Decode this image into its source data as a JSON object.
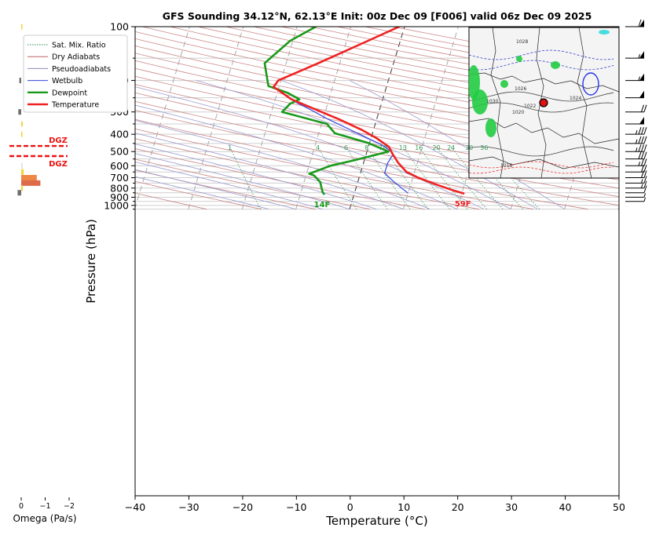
{
  "chart_data": {
    "type": "line",
    "subtype": "skew-t sounding",
    "title": "GFS Sounding 34.12°N, 62.13°E Init: 00z Dec 09 [F006] valid 06z Dec 09 2025",
    "xlabel": "Temperature (°C)",
    "ylabel": "Pressure (hPa)",
    "xlim": [
      -40,
      50
    ],
    "ylim": [
      1050,
      100
    ],
    "y_scale": "log",
    "x_ticks": [
      "−40",
      "−30",
      "−20",
      "−10",
      "0",
      "10",
      "20",
      "30",
      "40",
      "50"
    ],
    "y_ticks": [
      "100",
      "200",
      "300",
      "400",
      "500",
      "600",
      "700",
      "800",
      "900",
      "1000"
    ],
    "legend": {
      "placement": "top-left",
      "entries": [
        {
          "label": "Sat. Mix. Ratio",
          "color": "#2e8b57",
          "style": "dotted"
        },
        {
          "label": "Dry Adiabats",
          "color": "#c06060",
          "style": "solid-thin"
        },
        {
          "label": "Pseudoadiabats",
          "color": "#8888bb",
          "style": "solid-thin"
        },
        {
          "label": "Wetbulb",
          "color": "#3344dd",
          "style": "solid"
        },
        {
          "label": "Dewpoint",
          "color": "#1a9a1a",
          "style": "solid-thick"
        },
        {
          "label": "Temperature",
          "color": "#ee2222",
          "style": "solid-thick"
        }
      ]
    },
    "mixing_ratio_labels": [
      "1",
      "4",
      "6",
      "8",
      "10",
      "13",
      "16",
      "20",
      "24",
      "30",
      "36"
    ],
    "series": [
      {
        "name": "Temperature",
        "color": "#ee2222",
        "points": [
          [
            20.5,
            860
          ],
          [
            18,
            820
          ],
          [
            14.5,
            760
          ],
          [
            11,
            700
          ],
          [
            8.5,
            650
          ],
          [
            6.5,
            580
          ],
          [
            5,
            520
          ],
          [
            3.8,
            470
          ],
          [
            1,
            420
          ],
          [
            -2,
            380
          ],
          [
            -7,
            330
          ],
          [
            -12,
            290
          ],
          [
            -17,
            255
          ],
          [
            -21,
            217
          ],
          [
            -20.5,
            200
          ],
          [
            -14,
            160
          ],
          [
            -6,
            120
          ],
          [
            -1,
            100
          ]
        ]
      },
      {
        "name": "Dewpoint",
        "color": "#1a9a1a",
        "points": [
          [
            -5.5,
            870
          ],
          [
            -6,
            840
          ],
          [
            -6.5,
            790
          ],
          [
            -7,
            740
          ],
          [
            -8.5,
            680
          ],
          [
            -9.5,
            665
          ],
          [
            -6,
            600
          ],
          [
            -2,
            560
          ],
          [
            4,
            500
          ],
          [
            -0.5,
            445
          ],
          [
            -7,
            395
          ],
          [
            -9,
            350
          ],
          [
            -18,
            300
          ],
          [
            -17,
            270
          ],
          [
            -15.5,
            255
          ],
          [
            -18,
            235
          ],
          [
            -22,
            215
          ],
          [
            -22.5,
            200
          ],
          [
            -24,
            160
          ],
          [
            -20.5,
            120
          ],
          [
            -16.5,
            100
          ]
        ]
      },
      {
        "name": "Wetbulb",
        "color": "#3344dd",
        "points": [
          [
            10,
            855
          ],
          [
            8.5,
            800
          ],
          [
            6.5,
            730
          ],
          [
            4.5,
            660
          ],
          [
            4.5,
            580
          ],
          [
            5,
            520
          ],
          [
            4.5,
            500
          ],
          [
            2.5,
            460
          ],
          [
            -1.5,
            410
          ],
          [
            -5,
            370
          ],
          [
            -9,
            330
          ],
          [
            -13,
            290
          ],
          [
            -16,
            265
          ]
        ]
      }
    ],
    "annotations": {
      "surface_dewpoint": "14F",
      "surface_temperature": "59F"
    },
    "dgz": {
      "label": "DGZ",
      "pressures": [
        465,
        530
      ]
    },
    "omega": {
      "xlabel": "Omega (Pa/s)",
      "x_ticks": [
        "0",
        "−1",
        "−2"
      ],
      "bars": [
        {
          "pressure": 100,
          "value": -0.03,
          "color": "#f2d43b"
        },
        {
          "pressure": 200,
          "value": 0.08,
          "color": "#707070"
        },
        {
          "pressure": 300,
          "value": 0.12,
          "color": "#707070"
        },
        {
          "pressure": 350,
          "value": -0.06,
          "color": "#f2d43b"
        },
        {
          "pressure": 400,
          "value": -0.03,
          "color": "#f2d43b"
        },
        {
          "pressure": 600,
          "value": -0.02,
          "color": "#dddddd"
        },
        {
          "pressure": 650,
          "value": -0.1,
          "color": "#f2d43b"
        },
        {
          "pressure": 700,
          "value": -0.65,
          "color": "#ee8844"
        },
        {
          "pressure": 750,
          "value": -0.8,
          "color": "#dd6a4a"
        },
        {
          "pressure": 800,
          "value": -0.07,
          "color": "#f2d43b"
        },
        {
          "pressure": 850,
          "value": 0.15,
          "color": "#707070"
        }
      ]
    },
    "wind_barbs": [
      {
        "pressure": 100,
        "speed_kt": 60
      },
      {
        "pressure": 150,
        "speed_kt": 55
      },
      {
        "pressure": 200,
        "speed_kt": 55
      },
      {
        "pressure": 250,
        "speed_kt": 50
      },
      {
        "pressure": 300,
        "speed_kt": 20
      },
      {
        "pressure": 350,
        "speed_kt": 50
      },
      {
        "pressure": 400,
        "speed_kt": 35
      },
      {
        "pressure": 450,
        "speed_kt": 35
      },
      {
        "pressure": 500,
        "speed_kt": 35
      },
      {
        "pressure": 550,
        "speed_kt": 30
      },
      {
        "pressure": 600,
        "speed_kt": 25
      },
      {
        "pressure": 650,
        "speed_kt": 20
      },
      {
        "pressure": 700,
        "speed_kt": 20
      },
      {
        "pressure": 750,
        "speed_kt": 15
      },
      {
        "pressure": 800,
        "speed_kt": 15
      },
      {
        "pressure": 850,
        "speed_kt": 10
      },
      {
        "pressure": 900,
        "speed_kt": 5
      },
      {
        "pressure": 950,
        "speed_kt": 5
      }
    ],
    "inset_map": {
      "labels": [
        "1028",
        "1026",
        "1022",
        "1020",
        "1030",
        "1024",
        "1018"
      ],
      "marker_color": "#dd1111"
    },
    "grid": true
  }
}
